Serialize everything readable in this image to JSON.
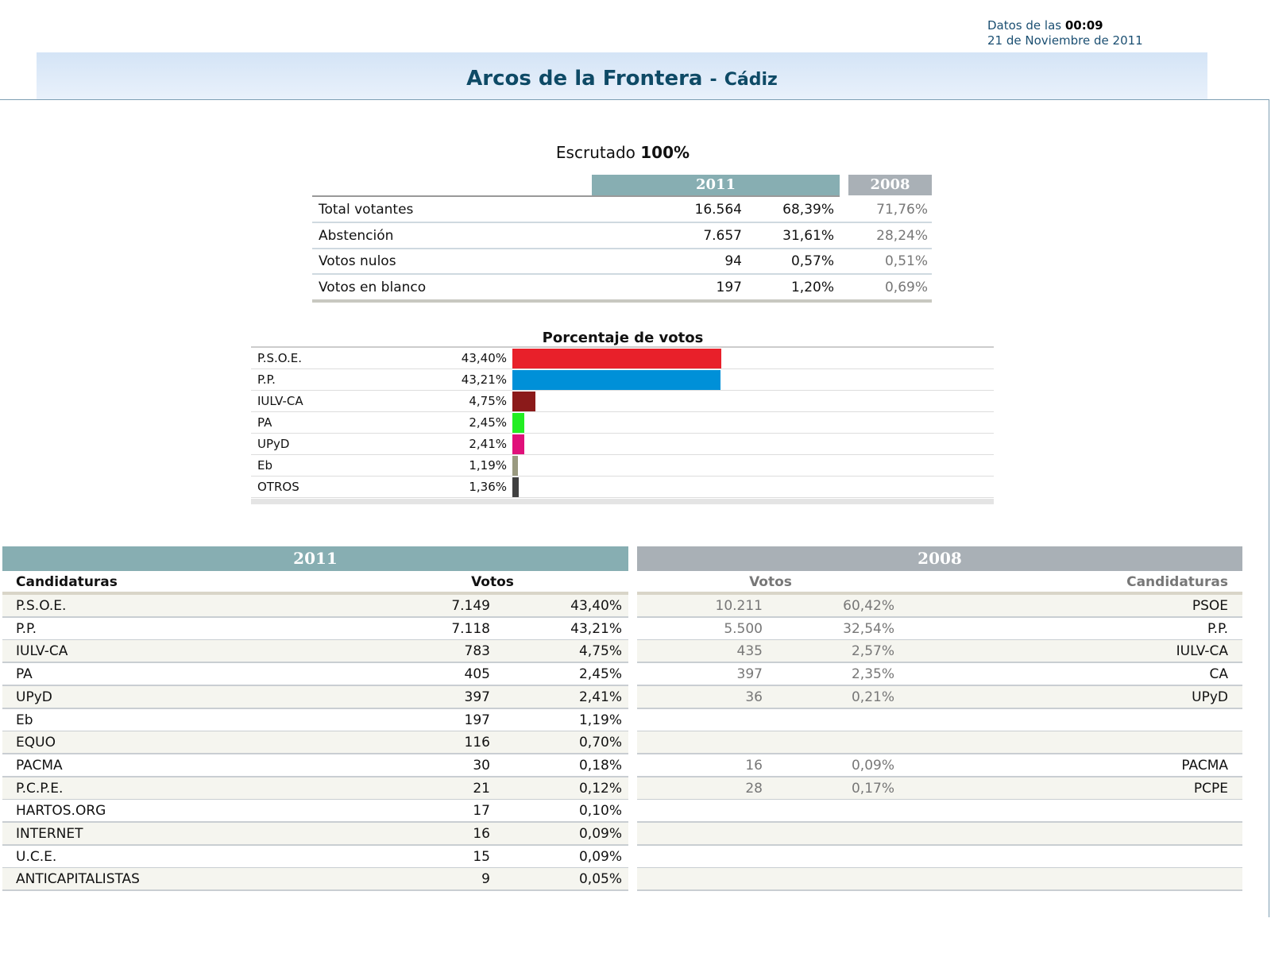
{
  "header": {
    "data_prefix": "Datos de las",
    "time": "00:09",
    "date": "21 de Noviembre de 2011",
    "title": "Arcos de la Frontera",
    "separator": "-",
    "province": "Cádiz"
  },
  "scrutiny": {
    "label": "Escrutado",
    "value": "100%"
  },
  "summary": {
    "year_current": "2011",
    "year_previous": "2008",
    "rows": [
      [
        "Total votantes",
        "16.564",
        "68,39%",
        "71,76%"
      ],
      [
        "Abstención",
        "7.657",
        "31,61%",
        "28,24%"
      ],
      [
        "Votos nulos",
        "94",
        "0,57%",
        "0,51%"
      ],
      [
        "Votos en blanco",
        "197",
        "1,20%",
        "0,69%"
      ]
    ]
  },
  "chart_data": {
    "type": "bar",
    "orientation": "horizontal",
    "title": "Porcentaje de votos",
    "categories": [
      "P.S.O.E.",
      "P.P.",
      "IULV-CA",
      "PA",
      "UPyD",
      "Eb",
      "OTROS"
    ],
    "values": [
      43.4,
      43.21,
      4.75,
      2.45,
      2.41,
      1.19,
      1.36
    ],
    "value_labels": [
      "43,40%",
      "43,21%",
      "4,75%",
      "2,45%",
      "2,41%",
      "1,19%",
      "1,36%"
    ],
    "colors": [
      "#e8202a",
      "#0090d8",
      "#8b1a1a",
      "#22ee22",
      "#e0107a",
      "#9a9a80",
      "#404040"
    ],
    "xlim": [
      0,
      100
    ]
  },
  "results": {
    "year_current": "2011",
    "year_previous": "2008",
    "col_parties": "Candidaturas",
    "col_votes": "Votos",
    "rows_current": [
      [
        "P.S.O.E.",
        "7.149",
        "43,40%"
      ],
      [
        "P.P.",
        "7.118",
        "43,21%"
      ],
      [
        "IULV-CA",
        "783",
        "4,75%"
      ],
      [
        "PA",
        "405",
        "2,45%"
      ],
      [
        "UPyD",
        "397",
        "2,41%"
      ],
      [
        "Eb",
        "197",
        "1,19%"
      ],
      [
        "EQUO",
        "116",
        "0,70%"
      ],
      [
        "PACMA",
        "30",
        "0,18%"
      ],
      [
        "P.C.P.E.",
        "21",
        "0,12%"
      ],
      [
        "HARTOS.ORG",
        "17",
        "0,10%"
      ],
      [
        "INTERNET",
        "16",
        "0,09%"
      ],
      [
        "U.C.E.",
        "15",
        "0,09%"
      ],
      [
        "ANTICAPITALISTAS",
        "9",
        "0,05%"
      ]
    ],
    "rows_previous": [
      [
        "10.211",
        "60,42%",
        "PSOE"
      ],
      [
        "5.500",
        "32,54%",
        "P.P."
      ],
      [
        "435",
        "2,57%",
        "IULV-CA"
      ],
      [
        "397",
        "2,35%",
        "CA"
      ],
      [
        "36",
        "0,21%",
        "UPyD"
      ],
      null,
      null,
      [
        "16",
        "0,09%",
        "PACMA"
      ],
      [
        "28",
        "0,17%",
        "PCPE"
      ],
      null,
      null,
      null,
      null
    ]
  }
}
